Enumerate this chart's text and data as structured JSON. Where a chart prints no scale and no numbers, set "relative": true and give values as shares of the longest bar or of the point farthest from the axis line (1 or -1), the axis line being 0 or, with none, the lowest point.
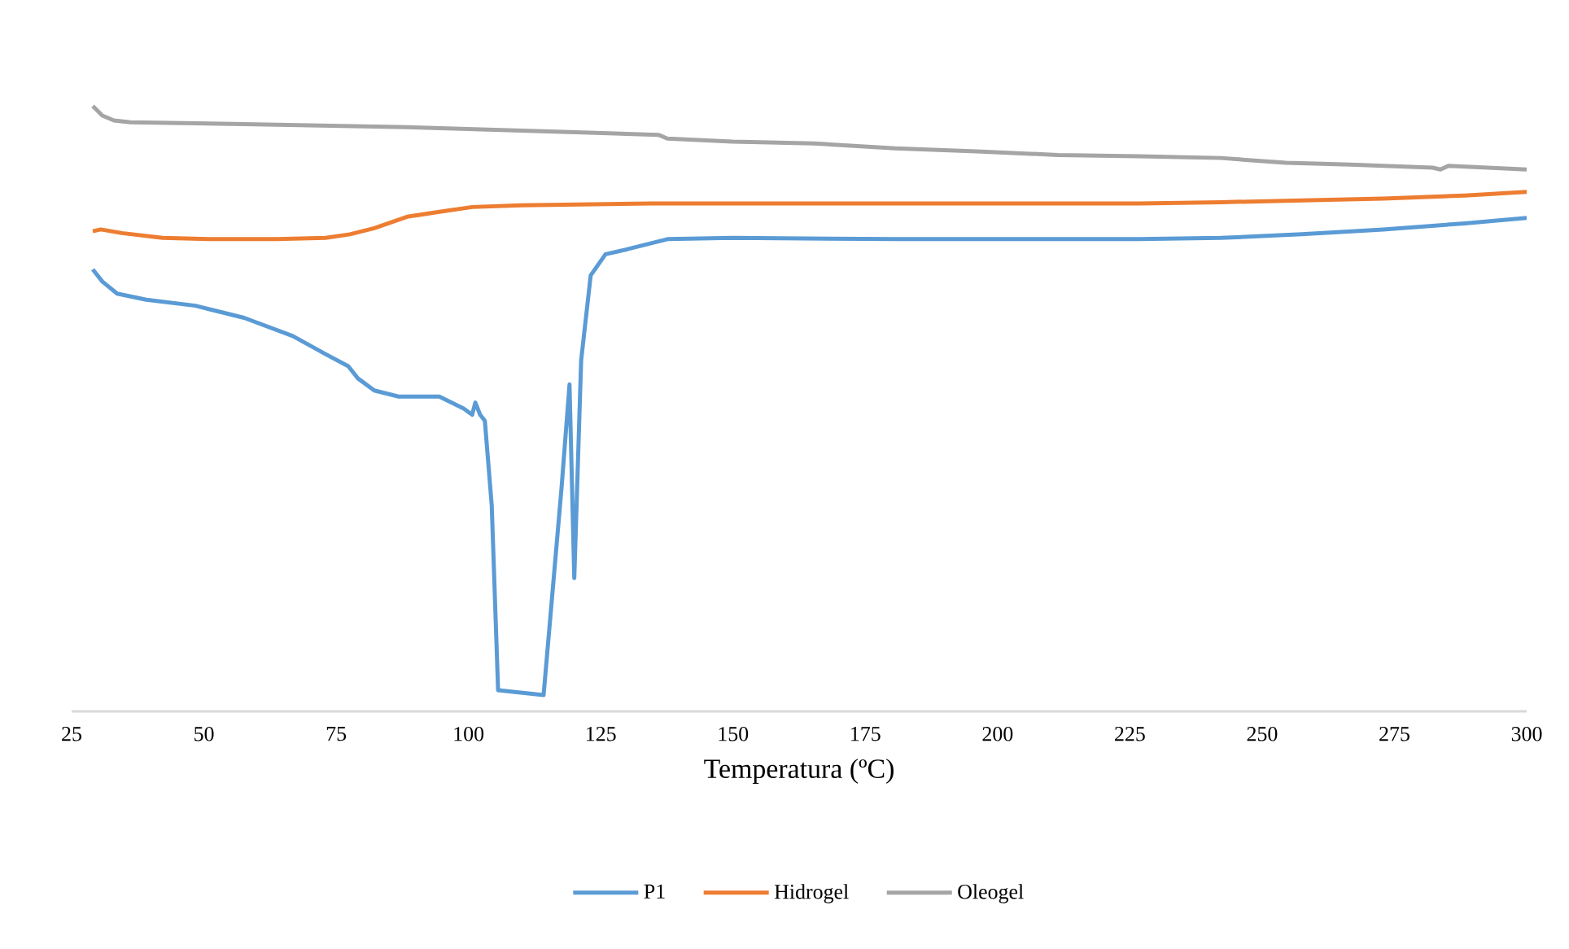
{
  "chart_data": {
    "type": "line",
    "relative": true,
    "xlabel": "Temperatura (ºC)",
    "xlim": [
      25,
      300
    ],
    "xticks": [
      25,
      50,
      75,
      100,
      125,
      150,
      175,
      200,
      225,
      250,
      275,
      300
    ],
    "legend": "bottom",
    "grid": false,
    "marker": "none",
    "line_style": "solid",
    "series": [
      {
        "name": "P1",
        "color": "#5b9bd5",
        "x": [
          29.0,
          30.8,
          33.6,
          39.1,
          48.4,
          57.6,
          66.8,
          73.0,
          77.3,
          79.1,
          82.2,
          86.8,
          90.8,
          94.5,
          99.1,
          100.7,
          101.3,
          102.2,
          103.1,
          104.4,
          105.6,
          114.2,
          117.6,
          119.1,
          120.0,
          121.3,
          123.1,
          125.9,
          129.9,
          137.6,
          149.9,
          180.6,
          211.4,
          226.8,
          242.2,
          257.5,
          272.9,
          288.3,
          300
        ],
        "values": [
          0.73,
          0.71,
          0.69,
          0.68,
          0.67,
          0.65,
          0.62,
          0.59,
          0.57,
          0.55,
          0.53,
          0.52,
          0.52,
          0.52,
          0.5,
          0.49,
          0.51,
          0.49,
          0.48,
          0.34,
          0.035,
          0.027,
          0.37,
          0.54,
          0.22,
          0.58,
          0.72,
          0.755,
          0.763,
          0.78,
          0.782,
          0.78,
          0.78,
          0.78,
          0.782,
          0.788,
          0.796,
          0.806,
          0.815
        ]
      },
      {
        "name": "Hidrogel",
        "color": "#ed7d31",
        "x": [
          29.0,
          30.5,
          34.5,
          42.2,
          51.5,
          63.8,
          73.0,
          77.6,
          82.2,
          88.4,
          94.5,
          100.7,
          109.9,
          134.5,
          165.3,
          196.0,
          226.8,
          242.2,
          257.5,
          272.9,
          288.3,
          300
        ],
        "values": [
          0.793,
          0.796,
          0.79,
          0.782,
          0.78,
          0.78,
          0.782,
          0.788,
          0.798,
          0.817,
          0.825,
          0.833,
          0.836,
          0.839,
          0.839,
          0.839,
          0.839,
          0.841,
          0.844,
          0.847,
          0.852,
          0.858
        ]
      },
      {
        "name": "Oleogel",
        "color": "#a5a5a5",
        "x": [
          29.0,
          30.8,
          33.0,
          36.1,
          57.6,
          88.4,
          119.1,
          136.0,
          137.6,
          149.9,
          165.3,
          180.6,
          196.0,
          211.4,
          226.8,
          242.2,
          254.5,
          266.8,
          282.2,
          283.7,
          285.2,
          300
        ],
        "values": [
          1.0,
          0.984,
          0.976,
          0.973,
          0.97,
          0.965,
          0.957,
          0.952,
          0.946,
          0.941,
          0.938,
          0.93,
          0.925,
          0.919,
          0.917,
          0.914,
          0.906,
          0.903,
          0.898,
          0.895,
          0.901,
          0.895
        ]
      }
    ]
  }
}
